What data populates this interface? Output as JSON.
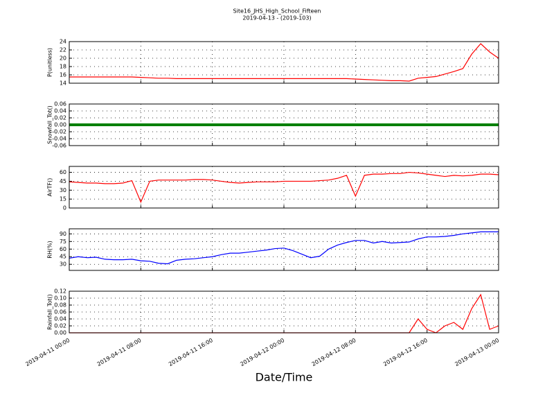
{
  "figure": {
    "title": "Site16_JHS_High_School_Fifteen",
    "subtitle": "2019-04-13 - (2019-103)",
    "xlabel": "Date/Time",
    "xlim": [
      "2019-04-11 00:00",
      "2019-04-13 00:00"
    ],
    "xticks": [
      "2019-04-11 00:00",
      "2019-04-11 08:00",
      "2019-04-11 16:00",
      "2019-04-12 00:00",
      "2019-04-12 08:00",
      "2019-04-12 16:00",
      "2019-04-13 00:00"
    ],
    "x": [
      "2019-04-11 00:00",
      "2019-04-11 01:00",
      "2019-04-11 02:00",
      "2019-04-11 03:00",
      "2019-04-11 04:00",
      "2019-04-11 05:00",
      "2019-04-11 06:00",
      "2019-04-11 07:00",
      "2019-04-11 08:00",
      "2019-04-11 09:00",
      "2019-04-11 10:00",
      "2019-04-11 11:00",
      "2019-04-11 12:00",
      "2019-04-11 13:00",
      "2019-04-11 14:00",
      "2019-04-11 15:00",
      "2019-04-11 16:00",
      "2019-04-11 17:00",
      "2019-04-11 18:00",
      "2019-04-11 19:00",
      "2019-04-11 20:00",
      "2019-04-11 21:00",
      "2019-04-11 22:00",
      "2019-04-11 23:00",
      "2019-04-12 00:00",
      "2019-04-12 01:00",
      "2019-04-12 02:00",
      "2019-04-12 03:00",
      "2019-04-12 04:00",
      "2019-04-12 05:00",
      "2019-04-12 06:00",
      "2019-04-12 07:00",
      "2019-04-12 08:00",
      "2019-04-12 09:00",
      "2019-04-12 10:00",
      "2019-04-12 11:00",
      "2019-04-12 12:00",
      "2019-04-12 13:00",
      "2019-04-12 14:00",
      "2019-04-12 15:00",
      "2019-04-12 16:00",
      "2019-04-12 17:00",
      "2019-04-12 18:00",
      "2019-04-12 19:00",
      "2019-04-12 20:00",
      "2019-04-12 21:00",
      "2019-04-12 22:00",
      "2019-04-12 23:00",
      "2019-04-13 00:00"
    ]
  },
  "chart_data": [
    {
      "type": "line",
      "ylabel": "P(unitless)",
      "color": "#ff0000",
      "ylim": [
        14,
        24
      ],
      "yticks": [
        14,
        16,
        18,
        20,
        22,
        24
      ],
      "grid": true,
      "values": [
        15.5,
        15.5,
        15.5,
        15.5,
        15.5,
        15.5,
        15.5,
        15.5,
        15.4,
        15.3,
        15.2,
        15.2,
        15.1,
        15.1,
        15.1,
        15.1,
        15.1,
        15.1,
        15.1,
        15.1,
        15.1,
        15.1,
        15.1,
        15.1,
        15.1,
        15.1,
        15.1,
        15.1,
        15.1,
        15.1,
        15.1,
        15.1,
        15.0,
        14.9,
        14.8,
        14.7,
        14.6,
        14.6,
        14.5,
        15.2,
        15.4,
        15.6,
        16.2,
        16.8,
        17.5,
        21,
        23.5,
        21.5,
        20
      ]
    },
    {
      "type": "line",
      "ylabel": "Snowfall_Tot()",
      "color": "#008000",
      "ylim": [
        -0.06,
        0.06
      ],
      "yticks": [
        -0.06,
        -0.04,
        -0.02,
        {
          "value": 0,
          "label": "0.00"
        },
        0.02,
        0.04,
        0.06
      ],
      "grid": true,
      "values": [
        0,
        0,
        0,
        0,
        0,
        0,
        0,
        0,
        0,
        0,
        0,
        0,
        0,
        0,
        0,
        0,
        0,
        0,
        0,
        0,
        0,
        0,
        0,
        0,
        0,
        0,
        0,
        0,
        0,
        0,
        0,
        0,
        0,
        0,
        0,
        0,
        0,
        0,
        0,
        0,
        0,
        0,
        0,
        0,
        0,
        0,
        0,
        0,
        0
      ]
    },
    {
      "type": "line",
      "ylabel": "AirTF()",
      "color": "#ff0000",
      "ylim": [
        0,
        70
      ],
      "yticks": [
        0,
        15,
        30,
        45,
        60
      ],
      "grid": true,
      "values": [
        44,
        43,
        42,
        42,
        41,
        41,
        42,
        46,
        10,
        45,
        47,
        47,
        47,
        47,
        48,
        48,
        47,
        45,
        43,
        42,
        43,
        44,
        44,
        44,
        45,
        45,
        45,
        45,
        46,
        47,
        50,
        55,
        20,
        55,
        57,
        57,
        58,
        58,
        60,
        59,
        57,
        55,
        53,
        55,
        54,
        55,
        57,
        57,
        56
      ]
    },
    {
      "type": "line",
      "ylabel": "RH(%)",
      "color": "#0000ff",
      "ylim": [
        18,
        100
      ],
      "yticks": [
        30,
        45,
        60,
        75,
        90
      ],
      "grid": true,
      "values": [
        42,
        45,
        43,
        44,
        40,
        39,
        39,
        40,
        37,
        36,
        32,
        31,
        38,
        40,
        41,
        43,
        45,
        49,
        52,
        52,
        54,
        56,
        58,
        61,
        62,
        57,
        50,
        43,
        46,
        60,
        68,
        73,
        77,
        77,
        72,
        75,
        72,
        73,
        74,
        80,
        84,
        84,
        85,
        87,
        90,
        92,
        94,
        94,
        94
      ]
    },
    {
      "type": "line",
      "ylabel": "Rainfall_Tot()",
      "color": "#ff0000",
      "ylim": [
        0,
        0.12
      ],
      "yticks": [
        {
          "value": 0,
          "label": "0.00"
        },
        0.02,
        0.04,
        0.06,
        0.08,
        {
          "value": 0.1,
          "label": "0.10"
        },
        0.12
      ],
      "grid": true,
      "values": [
        0,
        0,
        0,
        0,
        0,
        0,
        0,
        0,
        0,
        0,
        0,
        0,
        0,
        0,
        0,
        0,
        0,
        0,
        0,
        0,
        0,
        0,
        0,
        0,
        0,
        0,
        0,
        0,
        0,
        0,
        0,
        0,
        0,
        0,
        0,
        0,
        0,
        0,
        0,
        0.04,
        0.01,
        0,
        0.02,
        0.03,
        0.01,
        0.07,
        0.11,
        0.01,
        0.02
      ]
    }
  ]
}
